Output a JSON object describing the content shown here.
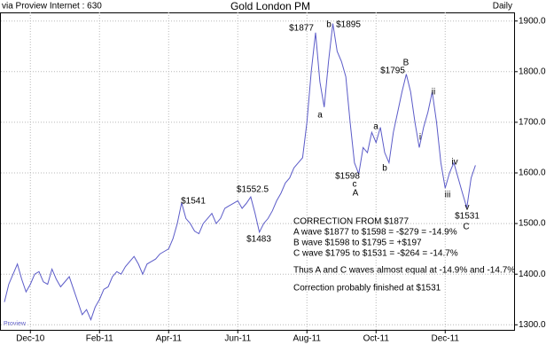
{
  "chart_data": {
    "type": "line",
    "title": "Gold London PM",
    "source": "via Proview Internet : 630",
    "frequency": "Daily",
    "watermark": "Proview",
    "categories": [
      null,
      null,
      null,
      null,
      null,
      null,
      "Dec-10",
      null,
      null,
      null,
      null,
      null,
      null,
      null,
      null,
      null,
      null,
      null,
      null,
      null,
      null,
      null,
      "Feb-11",
      null,
      null,
      null,
      null,
      null,
      null,
      null,
      null,
      null,
      null,
      null,
      null,
      null,
      null,
      null,
      "Apr-11",
      null,
      null,
      null,
      null,
      null,
      null,
      null,
      null,
      null,
      null,
      null,
      null,
      null,
      null,
      null,
      "Jun-11",
      null,
      null,
      null,
      null,
      null,
      null,
      null,
      null,
      null,
      null,
      null,
      null,
      null,
      null,
      null,
      "Aug-11",
      null,
      null,
      null,
      null,
      null,
      null,
      null,
      null,
      null,
      null,
      null,
      null,
      null,
      null,
      null,
      "Oct-11",
      null,
      null,
      null,
      null,
      null,
      null,
      null,
      null,
      null,
      null,
      null,
      null,
      null,
      null,
      null,
      "Dec-11",
      null,
      null,
      null,
      null,
      null,
      null,
      null
    ],
    "series": [
      {
        "name": "Gold London PM",
        "color": "#5b5bc8",
        "values": [
          1345,
          1380,
          1400,
          1420,
          1390,
          1365,
          1380,
          1400,
          1405,
          1385,
          1380,
          1410,
          1390,
          1375,
          1385,
          1395,
          1370,
          1345,
          1320,
          1330,
          1310,
          1335,
          1350,
          1370,
          1375,
          1395,
          1405,
          1400,
          1415,
          1425,
          1435,
          1420,
          1400,
          1420,
          1425,
          1430,
          1440,
          1445,
          1450,
          1470,
          1500,
          1541,
          1510,
          1500,
          1485,
          1480,
          1500,
          1510,
          1520,
          1500,
          1510,
          1530,
          1535,
          1540,
          1545,
          1530,
          1540,
          1552.5,
          1520,
          1483,
          1500,
          1510,
          1525,
          1545,
          1560,
          1580,
          1590,
          1610,
          1620,
          1630,
          1700,
          1800,
          1877,
          1780,
          1730,
          1820,
          1895,
          1840,
          1820,
          1790,
          1700,
          1620,
          1598,
          1650,
          1640,
          1680,
          1660,
          1690,
          1640,
          1620,
          1680,
          1720,
          1760,
          1795,
          1760,
          1700,
          1650,
          1690,
          1720,
          1760,
          1700,
          1620,
          1570,
          1600,
          1620,
          1590,
          1560,
          1531,
          1590,
          1615
        ]
      }
    ],
    "ylim": [
      1290,
      1917
    ],
    "yticks": [
      {
        "value": 1300,
        "label": "1300.0"
      },
      {
        "value": 1400,
        "label": "1400.0"
      },
      {
        "value": 1500,
        "label": "1500.0"
      },
      {
        "value": 1600,
        "label": "1600.0"
      },
      {
        "value": 1700,
        "label": "1700.0"
      },
      {
        "value": 1800,
        "label": "1800.0"
      },
      {
        "value": 1900,
        "label": "1900.0"
      }
    ],
    "grid": true,
    "annotations": [
      "$1877",
      "b",
      "$1895",
      "a",
      "$1598",
      "c",
      "A",
      "a",
      "b",
      "$1795",
      "B",
      "i",
      "ii",
      "iii",
      "iv",
      "v",
      "$1531",
      "C",
      "$1541",
      "$1552.5",
      "$1483"
    ],
    "notes": [
      "CORRECTION FROM $1877",
      "A wave  $1877 to $1598 = -$279 = -14.9%",
      "B wave $1598 to $1795 = +$197",
      "C wave  $1795 to $1531 = -$264 = -14.7%",
      "Thus A and C waves almost equal at -14.9% and -14.7%",
      "Correction probably finished at $1531"
    ]
  }
}
